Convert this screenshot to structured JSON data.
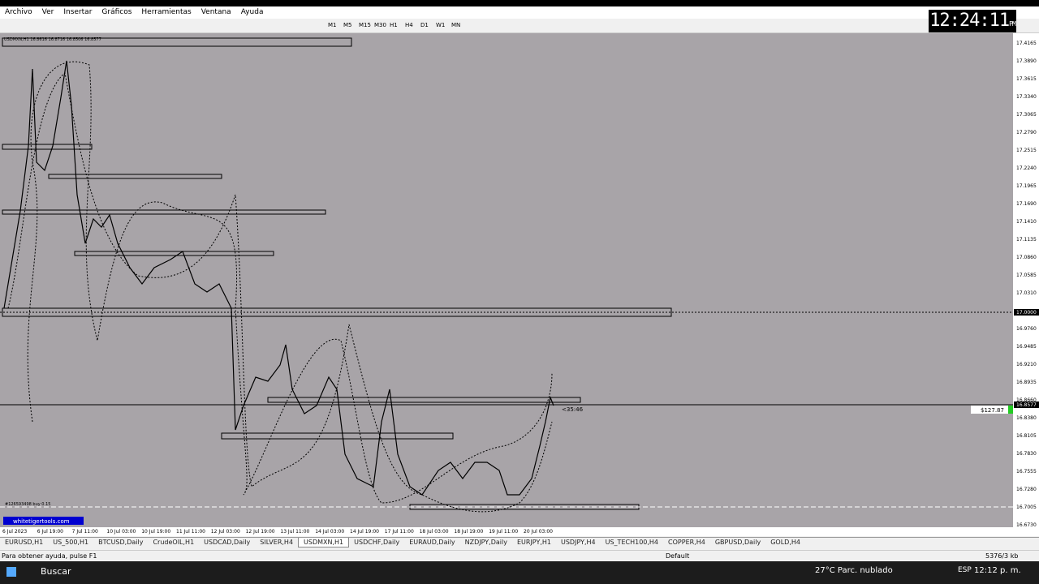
{
  "menu": [
    "Archivo",
    "Ver",
    "Insertar",
    "Gráficos",
    "Herramientas",
    "Ventana",
    "Ayuda"
  ],
  "timeframes": [
    "M1",
    "M5",
    "M15",
    "M30",
    "H1",
    "H4",
    "D1",
    "W1",
    "MN"
  ],
  "clock": {
    "time": "12:24:11",
    "ampm": "PM"
  },
  "chart": {
    "header": "USDMXN,H1 16.8616 16.8716 16.8506 16.8577",
    "price_labels": [
      "17.4165",
      "17.3890",
      "17.3615",
      "17.3340",
      "17.3065",
      "17.2790",
      "17.2515",
      "17.2240",
      "17.1965",
      "17.1690",
      "17.1410",
      "17.1135",
      "17.0860",
      "17.0585",
      "17.0310",
      "16.9760",
      "16.9485",
      "16.9210",
      "16.8935",
      "16.8660",
      "16.8380",
      "16.8105",
      "16.7830",
      "16.7555",
      "16.7280",
      "16.7005",
      "16.6730"
    ],
    "level_label": "17.0000",
    "current_price": "16.8577",
    "time_labels": [
      "6 Jul 2023",
      "6 Jul 19:00",
      "7 Jul 11:00",
      "10 Jul 03:00",
      "10 Jul 19:00",
      "11 Jul 11:00",
      "12 Jul 03:00",
      "12 Jul 19:00",
      "13 Jul 11:00",
      "14 Jul 03:00",
      "14 Jul 19:00",
      "17 Jul 11:00",
      "18 Jul 03:00",
      "18 Jul 19:00",
      "19 Jul 11:00",
      "20 Jul 03:00"
    ],
    "countdown": "<35:46",
    "profit": "$127.87",
    "order": "#126593498 buy 0.15",
    "watermark": "whitetigertools.com"
  },
  "tabs": [
    "EURUSD,H1",
    "US_500,H1",
    "BTCUSD,Daily",
    "CrudeOIL,H1",
    "USDCAD,Daily",
    "SILVER,H4",
    "USDMXN,H1",
    "USDCHF,Daily",
    "EURAUD,Daily",
    "NZDJPY,Daily",
    "EURJPY,H1",
    "USDJPY,H4",
    "US_TECH100,H4",
    "COPPER,H4",
    "GBPUSD,Daily",
    "GOLD,H4"
  ],
  "active_tab": 6,
  "status": {
    "help": "Para obtener ayuda, pulse F1",
    "profile": "Default",
    "traffic": "5376/3 kb"
  },
  "taskbar": {
    "search": "Buscar",
    "weather": "27°C Parc. nublado",
    "lang": "ESP",
    "time": "12:12 p. m."
  }
}
